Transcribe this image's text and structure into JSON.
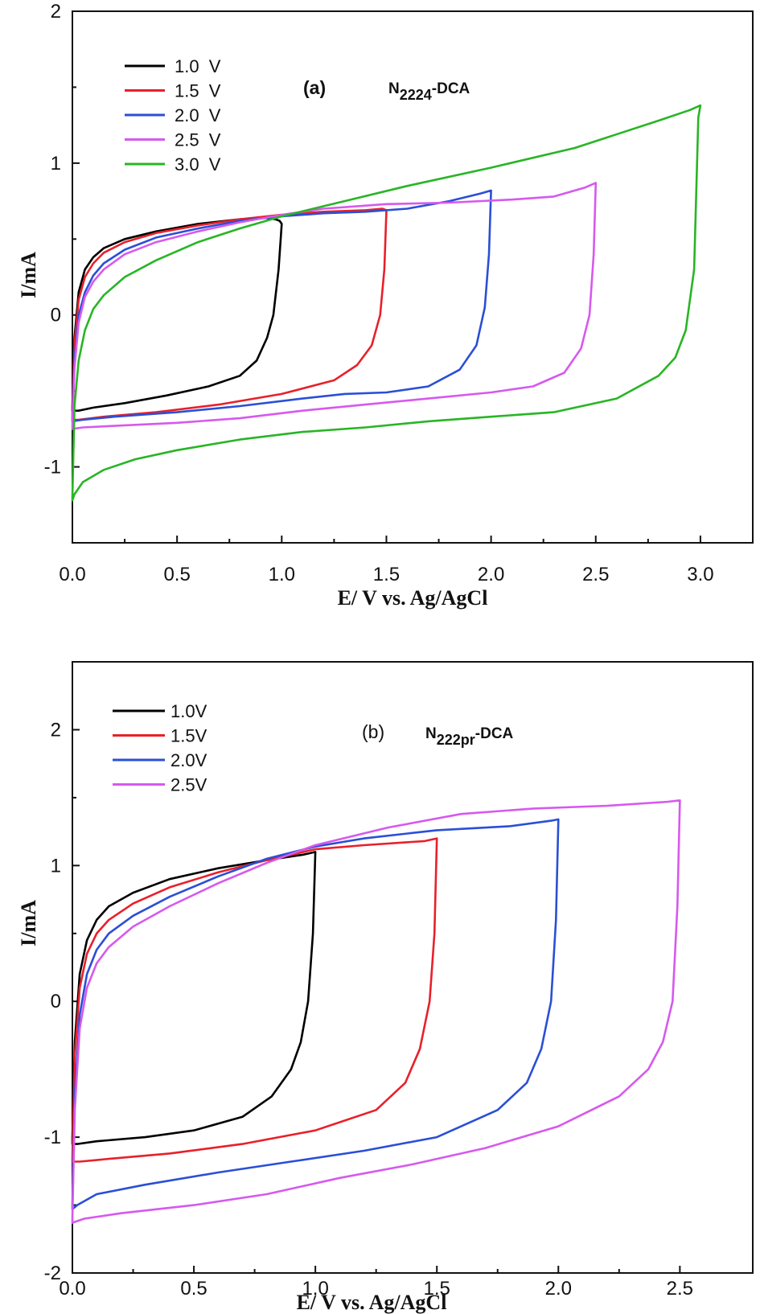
{
  "colors": {
    "1.0": "#000000",
    "1.5": "#e8202a",
    "2.0": "#2a4fd6",
    "2.5": "#d659ee",
    "3.0": "#28b525"
  },
  "chart_data": [
    {
      "type": "line",
      "panel_label": "(a)",
      "compound": {
        "base": "N",
        "sub": "2224",
        "suffix": "-DCA"
      },
      "xlabel": "E/ V vs. Ag/AgCl",
      "ylabel": "I/mA",
      "xlim": [
        0,
        3.25
      ],
      "ylim": [
        -1.5,
        2
      ],
      "xticks": [
        0,
        0.5,
        1.0,
        1.5,
        2.0,
        2.5,
        3.0
      ],
      "xtick_labels": [
        "0.0",
        "0.5",
        "1.0",
        "1.5",
        "2.0",
        "2.5",
        "3.0"
      ],
      "yticks": [
        -1,
        0,
        1,
        2
      ],
      "ytick_labels": [
        "-1",
        "0",
        "1",
        "2"
      ],
      "grid": false,
      "legend_position": "top-left",
      "series": [
        {
          "name": "1.0  V",
          "color_key": "1.0",
          "x": [
            0.0,
            0.01,
            0.03,
            0.06,
            0.1,
            0.15,
            0.25,
            0.4,
            0.6,
            0.8,
            0.92,
            0.97,
            0.99,
            1.0,
            0.985,
            0.96,
            0.93,
            0.88,
            0.8,
            0.65,
            0.45,
            0.25,
            0.1,
            0.03,
            0.0,
            0.0
          ],
          "y": [
            -0.6,
            -0.15,
            0.15,
            0.3,
            0.38,
            0.44,
            0.5,
            0.55,
            0.6,
            0.63,
            0.64,
            0.63,
            0.62,
            0.6,
            0.3,
            0.0,
            -0.15,
            -0.3,
            -0.4,
            -0.47,
            -0.53,
            -0.58,
            -0.61,
            -0.63,
            -0.63,
            -0.6
          ]
        },
        {
          "name": "1.5  V",
          "color_key": "1.5",
          "x": [
            0.0,
            0.01,
            0.03,
            0.06,
            0.1,
            0.15,
            0.25,
            0.4,
            0.6,
            0.8,
            1.0,
            1.2,
            1.4,
            1.48,
            1.5,
            1.49,
            1.47,
            1.43,
            1.36,
            1.25,
            1.0,
            0.7,
            0.4,
            0.15,
            0.03,
            0.0,
            0.0
          ],
          "y": [
            -0.65,
            -0.2,
            0.1,
            0.25,
            0.34,
            0.41,
            0.48,
            0.54,
            0.59,
            0.63,
            0.66,
            0.68,
            0.69,
            0.7,
            0.69,
            0.3,
            0.0,
            -0.2,
            -0.33,
            -0.43,
            -0.52,
            -0.59,
            -0.64,
            -0.67,
            -0.69,
            -0.69,
            -0.65
          ]
        },
        {
          "name": "2.0  V",
          "color_key": "2.0",
          "x": [
            0.0,
            0.01,
            0.03,
            0.06,
            0.1,
            0.15,
            0.25,
            0.4,
            0.6,
            0.8,
            1.0,
            1.2,
            1.4,
            1.6,
            1.8,
            1.95,
            2.0,
            1.99,
            1.97,
            1.93,
            1.85,
            1.7,
            1.5,
            1.3,
            1.1,
            0.8,
            0.5,
            0.2,
            0.05,
            0.0,
            0.0
          ],
          "y": [
            -0.7,
            -0.3,
            0.0,
            0.15,
            0.26,
            0.34,
            0.43,
            0.51,
            0.57,
            0.62,
            0.65,
            0.67,
            0.68,
            0.7,
            0.75,
            0.8,
            0.82,
            0.4,
            0.05,
            -0.2,
            -0.36,
            -0.47,
            -0.51,
            -0.52,
            -0.55,
            -0.6,
            -0.64,
            -0.67,
            -0.69,
            -0.7,
            -0.7
          ]
        },
        {
          "name": "2.5  V",
          "color_key": "2.5",
          "x": [
            0.0,
            0.01,
            0.03,
            0.06,
            0.1,
            0.15,
            0.25,
            0.4,
            0.6,
            0.8,
            1.0,
            1.2,
            1.5,
            1.8,
            2.1,
            2.3,
            2.45,
            2.5,
            2.49,
            2.47,
            2.43,
            2.35,
            2.2,
            2.0,
            1.7,
            1.4,
            1.1,
            0.8,
            0.5,
            0.2,
            0.05,
            0.0,
            0.0
          ],
          "y": [
            -0.72,
            -0.35,
            -0.05,
            0.12,
            0.22,
            0.3,
            0.4,
            0.48,
            0.55,
            0.61,
            0.66,
            0.7,
            0.73,
            0.74,
            0.76,
            0.78,
            0.84,
            0.87,
            0.4,
            0.0,
            -0.22,
            -0.38,
            -0.47,
            -0.51,
            -0.55,
            -0.59,
            -0.63,
            -0.68,
            -0.71,
            -0.73,
            -0.74,
            -0.75,
            -0.72
          ]
        },
        {
          "name": "3.0  V",
          "color_key": "3.0",
          "x": [
            0.0,
            0.01,
            0.03,
            0.06,
            0.1,
            0.15,
            0.25,
            0.4,
            0.6,
            0.8,
            1.0,
            1.3,
            1.6,
            2.0,
            2.4,
            2.8,
            2.95,
            3.0,
            2.99,
            2.97,
            2.93,
            2.88,
            2.8,
            2.6,
            2.3,
            2.0,
            1.7,
            1.4,
            1.1,
            0.8,
            0.5,
            0.3,
            0.15,
            0.05,
            0.01,
            0.0,
            0.0
          ],
          "y": [
            -1.2,
            -0.6,
            -0.3,
            -0.1,
            0.04,
            0.13,
            0.25,
            0.36,
            0.48,
            0.57,
            0.65,
            0.75,
            0.85,
            0.97,
            1.1,
            1.28,
            1.35,
            1.38,
            1.3,
            0.3,
            -0.1,
            -0.28,
            -0.4,
            -0.55,
            -0.64,
            -0.67,
            -0.7,
            -0.74,
            -0.77,
            -0.82,
            -0.89,
            -0.95,
            -1.02,
            -1.1,
            -1.18,
            -1.22,
            -1.2
          ]
        }
      ]
    },
    {
      "type": "line",
      "panel_label": "(b)",
      "compound": {
        "base": "N",
        "sub": "222pr",
        "suffix": "-DCA"
      },
      "xlabel": "E/ V vs. Ag/AgCl",
      "ylabel": "I/mA",
      "xlim": [
        0,
        2.8
      ],
      "ylim": [
        -2,
        2.5
      ],
      "xticks": [
        0,
        0.5,
        1.0,
        1.5,
        2.0,
        2.5
      ],
      "xtick_labels": [
        "0.0",
        "0.5",
        "1.0",
        "1.5",
        "2.0",
        "2.5"
      ],
      "yticks": [
        -2,
        -1,
        0,
        1,
        2
      ],
      "ytick_labels": [
        "-2",
        "-1",
        "0",
        "1",
        "2"
      ],
      "grid": false,
      "legend_position": "top-left",
      "series": [
        {
          "name": "1.0V",
          "color_key": "1.0",
          "x": [
            0.0,
            0.01,
            0.03,
            0.06,
            0.1,
            0.15,
            0.25,
            0.4,
            0.6,
            0.8,
            0.95,
            1.0,
            0.99,
            0.97,
            0.94,
            0.9,
            0.82,
            0.7,
            0.5,
            0.3,
            0.1,
            0.02,
            0.0,
            0.0
          ],
          "y": [
            -1.0,
            -0.3,
            0.2,
            0.45,
            0.6,
            0.7,
            0.8,
            0.9,
            0.98,
            1.04,
            1.08,
            1.1,
            0.5,
            0.0,
            -0.3,
            -0.5,
            -0.7,
            -0.85,
            -0.95,
            -1.0,
            -1.03,
            -1.05,
            -1.05,
            -1.0
          ]
        },
        {
          "name": "1.5V",
          "color_key": "1.5",
          "x": [
            0.0,
            0.01,
            0.03,
            0.06,
            0.1,
            0.15,
            0.25,
            0.4,
            0.6,
            0.8,
            1.0,
            1.2,
            1.45,
            1.5,
            1.49,
            1.47,
            1.43,
            1.37,
            1.25,
            1.0,
            0.7,
            0.4,
            0.15,
            0.03,
            0.0,
            0.0
          ],
          "y": [
            -1.15,
            -0.4,
            0.1,
            0.35,
            0.5,
            0.6,
            0.72,
            0.84,
            0.95,
            1.04,
            1.12,
            1.15,
            1.18,
            1.2,
            0.5,
            0.0,
            -0.35,
            -0.6,
            -0.8,
            -0.95,
            -1.05,
            -1.12,
            -1.16,
            -1.18,
            -1.18,
            -1.15
          ]
        },
        {
          "name": "2.0V",
          "color_key": "2.0",
          "x": [
            0.0,
            0.01,
            0.03,
            0.06,
            0.1,
            0.15,
            0.25,
            0.4,
            0.6,
            0.8,
            1.0,
            1.2,
            1.5,
            1.8,
            1.97,
            2.0,
            1.99,
            1.97,
            1.93,
            1.87,
            1.75,
            1.5,
            1.2,
            0.9,
            0.6,
            0.3,
            0.1,
            0.02,
            0.0,
            0.0
          ],
          "y": [
            -1.5,
            -0.7,
            -0.1,
            0.2,
            0.38,
            0.5,
            0.63,
            0.77,
            0.92,
            1.05,
            1.14,
            1.2,
            1.26,
            1.29,
            1.33,
            1.34,
            0.6,
            0.0,
            -0.35,
            -0.6,
            -0.8,
            -1.0,
            -1.1,
            -1.18,
            -1.26,
            -1.35,
            -1.42,
            -1.5,
            -1.53,
            -1.5
          ]
        },
        {
          "name": "2.5V",
          "color_key": "2.5",
          "x": [
            0.0,
            0.01,
            0.03,
            0.06,
            0.1,
            0.15,
            0.25,
            0.4,
            0.6,
            0.8,
            1.0,
            1.3,
            1.6,
            1.9,
            2.2,
            2.45,
            2.5,
            2.49,
            2.47,
            2.43,
            2.37,
            2.25,
            2.0,
            1.7,
            1.4,
            1.1,
            0.8,
            0.5,
            0.2,
            0.05,
            0.0,
            0.0
          ],
          "y": [
            -1.6,
            -0.8,
            -0.2,
            0.1,
            0.28,
            0.4,
            0.55,
            0.7,
            0.87,
            1.02,
            1.15,
            1.28,
            1.38,
            1.42,
            1.44,
            1.47,
            1.48,
            0.7,
            0.0,
            -0.3,
            -0.5,
            -0.7,
            -0.92,
            -1.08,
            -1.2,
            -1.3,
            -1.42,
            -1.5,
            -1.56,
            -1.6,
            -1.63,
            -1.6
          ]
        }
      ]
    }
  ]
}
